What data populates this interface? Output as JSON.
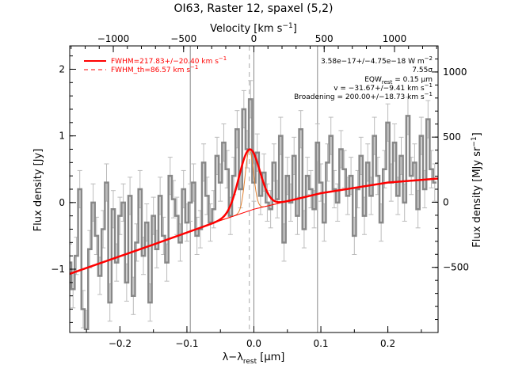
{
  "chart_data": {
    "type": "line",
    "title": "OI63, Raster 12, spaxel (5,2)",
    "bottom_axis": {
      "label": "λ−λ",
      "label_sub": "rest",
      "label_unit": " [μm]",
      "range": [
        -0.275,
        0.275
      ],
      "ticks": [
        -0.2,
        -0.1,
        0.0,
        0.1,
        0.2
      ],
      "tick_labels": [
        "−0.2",
        "−0.1",
        "0.0",
        "0.1",
        "0.2"
      ]
    },
    "top_axis": {
      "label": "Velocity [km s",
      "label_sup": "−1",
      "label_end": "]",
      "range": [
        -1310,
        1310
      ],
      "ticks": [
        -1000,
        -500,
        0,
        500,
        1000
      ],
      "tick_labels": [
        "−1000",
        "−500",
        "0",
        "500",
        "1000"
      ]
    },
    "left_axis": {
      "label": "Flux density [Jy]",
      "range": [
        -1.95,
        2.35
      ],
      "ticks": [
        -1,
        0,
        1,
        2
      ],
      "tick_labels": [
        "−1",
        "0",
        "1",
        "2"
      ]
    },
    "right_axis": {
      "label": "Flux density [MJy sr",
      "label_sup": "−1",
      "label_end": "]",
      "range": [
        -1000,
        1200
      ],
      "ticks": [
        -500,
        0,
        500,
        1000
      ],
      "tick_labels": [
        "−500",
        "0",
        "500",
        "1000"
      ]
    },
    "legend": [
      {
        "text": "FWHM=217.83+/−20.40 km s",
        "sup": "−1",
        "style": "solid",
        "color": "#ff0000"
      },
      {
        "text": "FWHM_th=86.57 km s",
        "sup": "−1",
        "style": "dashed",
        "color": "#ff0000"
      }
    ],
    "annotations": [
      {
        "text": "3.58e−17+/−4.75e−18 W m",
        "sup": "−2"
      },
      {
        "text": "7.55σ"
      },
      {
        "text": "EQW",
        "sub": "rest",
        "tail": " = 0.15 μm"
      },
      {
        "text": "v = −31.67+/−9.41 km s",
        "sup": "−1"
      },
      {
        "text": "Broadening = 200.00+/−18.73 km s",
        "sup": "−1"
      }
    ],
    "vertical_lines_x": [
      -0.095,
      0.0,
      0.095
    ],
    "dashed_line_x": -0.0068,
    "continuum": {
      "x": [
        -0.275,
        -0.15,
        -0.05,
        0.0,
        0.1,
        0.2,
        0.275
      ],
      "y": [
        -1.07,
        -0.63,
        -0.27,
        -0.1,
        0.14,
        0.3,
        0.36
      ]
    },
    "fit": {
      "center": -0.0068,
      "amplitude": 0.92,
      "sigma": 0.0155
    },
    "thermal_fit": {
      "center": -0.0068,
      "amplitude": 0.92,
      "sigma": 0.0062
    },
    "spectrum": {
      "x": [
        -0.275,
        -0.27,
        -0.265,
        -0.26,
        -0.255,
        -0.25,
        -0.245,
        -0.24,
        -0.235,
        -0.23,
        -0.225,
        -0.22,
        -0.215,
        -0.21,
        -0.205,
        -0.2,
        -0.195,
        -0.19,
        -0.185,
        -0.18,
        -0.175,
        -0.17,
        -0.165,
        -0.16,
        -0.155,
        -0.15,
        -0.145,
        -0.14,
        -0.135,
        -0.13,
        -0.125,
        -0.12,
        -0.115,
        -0.11,
        -0.105,
        -0.1,
        -0.095,
        -0.09,
        -0.085,
        -0.08,
        -0.075,
        -0.07,
        -0.065,
        -0.06,
        -0.055,
        -0.05,
        -0.045,
        -0.04,
        -0.035,
        -0.03,
        -0.025,
        -0.02,
        -0.015,
        -0.01,
        -0.005,
        0.0,
        0.005,
        0.01,
        0.015,
        0.02,
        0.025,
        0.03,
        0.035,
        0.04,
        0.045,
        0.05,
        0.055,
        0.06,
        0.065,
        0.07,
        0.075,
        0.08,
        0.085,
        0.09,
        0.095,
        0.1,
        0.105,
        0.11,
        0.115,
        0.12,
        0.125,
        0.13,
        0.135,
        0.14,
        0.145,
        0.15,
        0.155,
        0.16,
        0.165,
        0.17,
        0.175,
        0.18,
        0.185,
        0.19,
        0.195,
        0.2,
        0.205,
        0.21,
        0.215,
        0.22,
        0.225,
        0.23,
        0.235,
        0.24,
        0.245,
        0.25,
        0.255,
        0.26,
        0.265,
        0.27
      ],
      "y": [
        -0.9,
        -1.3,
        -0.8,
        0.2,
        -1.6,
        -1.9,
        -0.7,
        0.0,
        -0.5,
        -1.1,
        -0.4,
        0.3,
        -1.5,
        -0.1,
        -0.9,
        -0.2,
        0.0,
        -1.2,
        0.1,
        -1.4,
        -0.6,
        0.2,
        -0.8,
        -0.3,
        -1.5,
        -0.2,
        -0.7,
        0.1,
        -0.5,
        -0.9,
        0.4,
        0.05,
        -0.2,
        -0.6,
        0.2,
        -0.3,
        0.0,
        0.3,
        -0.5,
        -0.4,
        0.6,
        0.1,
        -0.3,
        -0.1,
        0.7,
        0.3,
        0.9,
        0.5,
        -0.2,
        0.4,
        1.1,
        0.2,
        1.4,
        0.8,
        1.55,
        0.3,
        0.75,
        0.1,
        0.45,
        0.0,
        -0.1,
        0.6,
        0.05,
        1.0,
        -0.6,
        0.4,
        0.0,
        0.7,
        -0.2,
        1.1,
        -0.4,
        0.4,
        0.2,
        -0.1,
        0.9,
        0.3,
        -0.3,
        0.6,
        1.0,
        0.2,
        0.0,
        0.8,
        0.5,
        0.1,
        0.4,
        -0.5,
        0.2,
        0.7,
        -0.2,
        0.6,
        0.1,
        1.0,
        0.4,
        -0.3,
        0.5,
        1.2,
        0.3,
        0.9,
        0.1,
        0.7,
        0.0,
        1.3,
        0.4,
        0.6,
        -0.1,
        1.0,
        0.2,
        1.25,
        0.5,
        0.3
      ],
      "err": 0.28
    }
  }
}
